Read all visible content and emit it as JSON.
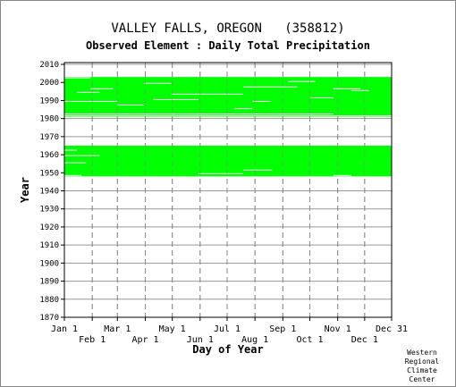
{
  "chart_data": {
    "type": "heatmap",
    "title": "VALLEY FALLS, OREGON   (358812)",
    "subtitle": "Observed Element : Daily Total Precipitation",
    "xlabel": "Day of Year",
    "ylabel": "Year",
    "x_ticks_top_row": [
      "Jan 1",
      "Mar 1",
      "May 1",
      "Jul 1",
      "Sep 1",
      "Nov 1",
      "Dec 31"
    ],
    "x_ticks_bottom_row": [
      "Feb 1",
      "Apr 1",
      "Jun 1",
      "Aug 1",
      "Oct 1",
      "Dec 1"
    ],
    "y_ticks": [
      2010,
      2000,
      1990,
      1980,
      1970,
      1960,
      1950,
      1940,
      1930,
      1920,
      1910,
      1900,
      1890,
      1880,
      1870
    ],
    "ylim": [
      1870,
      2011
    ],
    "xlim": [
      1,
      365
    ],
    "grid": true,
    "data_color": "#00ff00",
    "data_meaning": "observed days",
    "coverage_blocks": [
      {
        "years": [
          1948,
          1964
        ],
        "days": [
          1,
          365
        ]
      },
      {
        "years": [
          1981,
          2002
        ],
        "days": [
          1,
          365
        ]
      }
    ],
    "gaps": [
      {
        "year": 1948,
        "days": [
          1,
          20
        ]
      },
      {
        "year": 1949,
        "days": [
          150,
          200
        ]
      },
      {
        "year": 1951,
        "days": [
          200,
          232
        ]
      },
      {
        "year": 1955,
        "days": [
          1,
          25
        ]
      },
      {
        "year": 1959,
        "days": [
          1,
          40
        ]
      },
      {
        "year": 1962,
        "days": [
          1,
          15
        ]
      },
      {
        "year": 1948,
        "days": [
          300,
          320
        ]
      },
      {
        "year": 1981,
        "days": [
          1,
          365
        ]
      },
      {
        "year": 1982,
        "days": [
          1,
          300
        ]
      },
      {
        "year": 1985,
        "days": [
          190,
          210
        ]
      },
      {
        "year": 1987,
        "days": [
          60,
          90
        ]
      },
      {
        "year": 1989,
        "days": [
          1,
          60
        ]
      },
      {
        "year": 1989,
        "days": [
          210,
          230
        ]
      },
      {
        "year": 1990,
        "days": [
          100,
          150
        ]
      },
      {
        "year": 1991,
        "days": [
          275,
          300
        ]
      },
      {
        "year": 1993,
        "days": [
          120,
          200
        ]
      },
      {
        "year": 1994,
        "days": [
          15,
          40
        ]
      },
      {
        "year": 1995,
        "days": [
          320,
          340
        ]
      },
      {
        "year": 1996,
        "days": [
          30,
          55
        ]
      },
      {
        "year": 1996,
        "days": [
          300,
          330
        ]
      },
      {
        "year": 1997,
        "days": [
          200,
          260
        ]
      },
      {
        "year": 1999,
        "days": [
          90,
          120
        ]
      },
      {
        "year": 2000,
        "days": [
          250,
          280
        ]
      },
      {
        "year": 2002,
        "days": [
          1,
          30
        ]
      }
    ]
  },
  "credit": {
    "line1": "Western",
    "line2": "Regional",
    "line3": "Climate",
    "line4": "Center"
  }
}
